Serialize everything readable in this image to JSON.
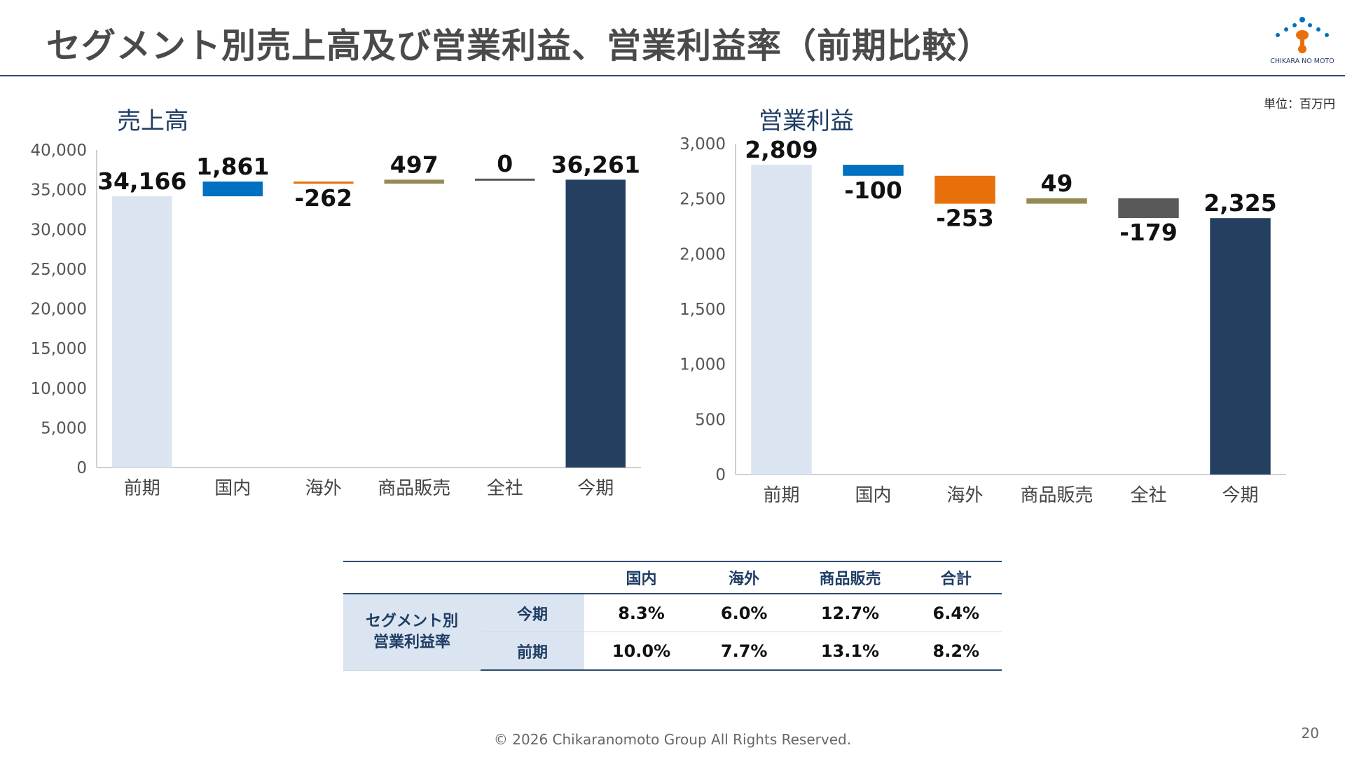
{
  "header": {
    "title": "セグメント別売上高及び営業利益、営業利益率（前期比較）",
    "logo_text": "CHIKARA NO MOTO",
    "unit_label": "単位：百万円"
  },
  "colors": {
    "previous": "#dbe5f1",
    "domestic": "#0070c0",
    "overseas": "#e8700a",
    "merchandise": "#948a54",
    "corporate": "#595959",
    "current": "#243f60",
    "accent": "#2e4a6e"
  },
  "chart_data": [
    {
      "type": "bar",
      "variant": "waterfall",
      "title": "売上高",
      "categories": [
        "前期",
        "国内",
        "海外",
        "商品販売",
        "全社",
        "今期"
      ],
      "values": [
        34166,
        1861,
        -262,
        497,
        0,
        36261
      ],
      "data_labels": [
        "34,166",
        "1,861",
        "-262",
        "497",
        "0",
        "36,261"
      ],
      "ylim": [
        0,
        40000
      ],
      "yticks": [
        "0",
        "5,000",
        "10,000",
        "15,000",
        "20,000",
        "25,000",
        "30,000",
        "35,000",
        "40,000"
      ],
      "grid": false
    },
    {
      "type": "bar",
      "variant": "waterfall",
      "title": "営業利益",
      "categories": [
        "前期",
        "国内",
        "海外",
        "商品販売",
        "全社",
        "今期"
      ],
      "values": [
        2809,
        -100,
        -253,
        49,
        -179,
        2325
      ],
      "data_labels": [
        "2,809",
        "-100",
        "-253",
        "49",
        "-179",
        "2,325"
      ],
      "ylim": [
        0,
        3000
      ],
      "yticks": [
        "0",
        "500",
        "1,000",
        "1,500",
        "2,000",
        "2,500",
        "3,000"
      ],
      "grid": false
    }
  ],
  "rate_table": {
    "columns": [
      "国内",
      "海外",
      "商品販売",
      "合計"
    ],
    "group_label_line1": "セグメント別",
    "group_label_line2": "営業利益率",
    "rows": [
      {
        "label": "今期",
        "values": [
          "8.3%",
          "6.0%",
          "12.7%",
          "6.4%"
        ]
      },
      {
        "label": "前期",
        "values": [
          "10.0%",
          "7.7%",
          "13.1%",
          "8.2%"
        ]
      }
    ]
  },
  "footer": {
    "copyright": "© 2026 Chikaranomoto Group All Rights Reserved.",
    "page_number": "20"
  }
}
